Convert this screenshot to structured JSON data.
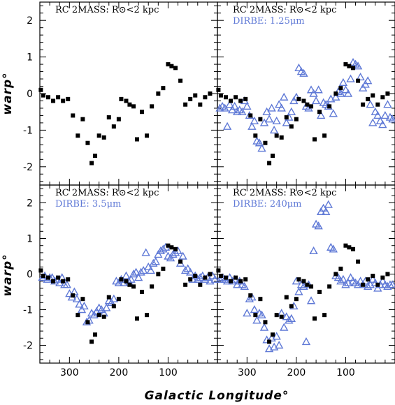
{
  "figure": {
    "xlabel": "Galactic Longitude°",
    "ylabel": "warp°"
  },
  "colors": {
    "rc": "#000000",
    "dirbe": "#5f79d6"
  },
  "chart_data": [
    {
      "type": "scatter",
      "panel": "top-left",
      "annotations": [
        {
          "text": "RC 2MASS: R⊙<2 kpc",
          "color": "#000000"
        }
      ],
      "xlim": [
        360,
        0
      ],
      "ylim": [
        -2.5,
        2.5
      ],
      "xticks": [
        300,
        200,
        100
      ],
      "yticks": [
        -2,
        -1,
        0,
        1,
        2
      ],
      "show_x_ticklabels": false,
      "show_y_ticklabels": true,
      "series": [
        {
          "role": "rc",
          "marker": "square",
          "x": [
            358,
            353,
            343,
            333,
            323,
            313,
            303,
            293,
            283,
            273,
            263,
            255,
            248,
            240,
            230,
            220,
            210,
            200,
            195,
            185,
            178,
            170,
            163,
            153,
            143,
            133,
            120,
            110,
            100,
            93,
            85,
            75,
            65,
            55,
            45,
            35,
            25,
            15
          ],
          "y": [
            0.1,
            -0.05,
            -0.1,
            -0.2,
            -0.1,
            -0.2,
            -0.15,
            -0.6,
            -1.15,
            -0.7,
            -1.35,
            -1.9,
            -1.7,
            -1.15,
            -1.2,
            -0.65,
            -0.9,
            -0.7,
            -0.15,
            -0.2,
            -0.3,
            -0.35,
            -1.25,
            -0.5,
            -1.15,
            -0.35,
            0.0,
            0.15,
            0.8,
            0.75,
            0.7,
            0.35,
            -0.3,
            -0.15,
            -0.05,
            -0.3,
            -0.1,
            0.0
          ]
        }
      ]
    },
    {
      "type": "scatter",
      "panel": "top-right",
      "annotations": [
        {
          "text": "RC 2MASS: R⊙<2 kpc",
          "color": "#000000"
        },
        {
          "text": "DIRBE: 1.25μm",
          "color": "#5f79d6"
        }
      ],
      "xlim": [
        360,
        0
      ],
      "ylim": [
        -2.5,
        2.5
      ],
      "xticks": [
        300,
        200,
        100
      ],
      "yticks": [
        -2,
        -1,
        0,
        1,
        2
      ],
      "show_x_ticklabels": false,
      "show_y_ticklabels": false,
      "series": [
        {
          "role": "rc",
          "marker": "square",
          "x": [
            358,
            353,
            343,
            333,
            323,
            313,
            303,
            293,
            283,
            273,
            263,
            255,
            248,
            240,
            230,
            220,
            210,
            200,
            195,
            185,
            178,
            170,
            163,
            153,
            143,
            133,
            120,
            110,
            100,
            93,
            85,
            75,
            65,
            55,
            45,
            35,
            25,
            15
          ],
          "y": [
            0.1,
            -0.05,
            -0.1,
            -0.2,
            -0.1,
            -0.2,
            -0.15,
            -0.6,
            -1.15,
            -0.7,
            -1.35,
            -1.9,
            -1.7,
            -1.15,
            -1.2,
            -0.65,
            -0.9,
            -0.7,
            -0.15,
            -0.2,
            -0.3,
            -0.35,
            -1.25,
            -0.5,
            -1.15,
            -0.35,
            0.0,
            0.15,
            0.8,
            0.75,
            0.7,
            0.35,
            -0.3,
            -0.15,
            -0.05,
            -0.3,
            -0.1,
            0.0
          ]
        },
        {
          "role": "dirbe",
          "marker": "triangle",
          "x": [
            355,
            350,
            345,
            340,
            335,
            330,
            325,
            320,
            315,
            310,
            305,
            300,
            295,
            290,
            285,
            280,
            275,
            270,
            265,
            260,
            255,
            250,
            245,
            240,
            235,
            230,
            225,
            220,
            215,
            210,
            205,
            200,
            195,
            190,
            185,
            180,
            175,
            170,
            165,
            160,
            155,
            150,
            145,
            140,
            135,
            130,
            125,
            120,
            115,
            110,
            105,
            100,
            95,
            90,
            85,
            80,
            75,
            70,
            65,
            60,
            55,
            50,
            45,
            40,
            35,
            30,
            25,
            20,
            15,
            10,
            5
          ],
          "y": [
            -0.4,
            -0.35,
            -0.4,
            -0.9,
            -0.3,
            -0.45,
            -0.35,
            -0.5,
            -0.45,
            -0.5,
            -0.2,
            -0.35,
            -0.6,
            -0.9,
            -0.75,
            -1.3,
            -1.35,
            -1.5,
            -0.8,
            -0.5,
            -0.7,
            -0.4,
            -1.0,
            -0.75,
            -0.3,
            -0.4,
            -0.1,
            -0.8,
            -0.65,
            -0.5,
            -0.2,
            -0.1,
            0.7,
            0.6,
            0.55,
            -0.35,
            -0.4,
            0.1,
            0.0,
            -0.2,
            0.1,
            -0.6,
            -0.25,
            -0.3,
            -0.35,
            -0.15,
            -0.55,
            -0.1,
            0.05,
            0.0,
            0.3,
            0.1,
            0.0,
            0.4,
            0.85,
            0.8,
            0.75,
            0.45,
            0.15,
            0.25,
            0.35,
            -0.3,
            -0.8,
            -0.5,
            -0.6,
            -0.75,
            -0.85,
            -0.6,
            -0.3,
            -0.65,
            -0.7
          ]
        }
      ]
    },
    {
      "type": "scatter",
      "panel": "bottom-left",
      "annotations": [
        {
          "text": "RC 2MASS: R⊙<2 kpc",
          "color": "#000000"
        },
        {
          "text": "DIRBE: 3.5μm",
          "color": "#5f79d6"
        }
      ],
      "xlim": [
        360,
        0
      ],
      "ylim": [
        -2.5,
        2.5
      ],
      "xticks": [
        300,
        200,
        100
      ],
      "yticks": [
        -2,
        -1,
        0,
        1,
        2
      ],
      "show_x_ticklabels": true,
      "show_y_ticklabels": true,
      "series": [
        {
          "role": "rc",
          "marker": "square",
          "x": [
            358,
            353,
            343,
            333,
            323,
            313,
            303,
            293,
            283,
            273,
            263,
            255,
            248,
            240,
            230,
            220,
            210,
            200,
            195,
            185,
            178,
            170,
            163,
            153,
            143,
            133,
            120,
            110,
            100,
            93,
            85,
            75,
            65,
            55,
            45,
            35,
            25,
            15
          ],
          "y": [
            0.1,
            -0.05,
            -0.1,
            -0.2,
            -0.1,
            -0.2,
            -0.15,
            -0.6,
            -1.15,
            -0.7,
            -1.35,
            -1.9,
            -1.7,
            -1.15,
            -1.2,
            -0.65,
            -0.9,
            -0.7,
            -0.15,
            -0.2,
            -0.3,
            -0.35,
            -1.25,
            -0.5,
            -1.15,
            -0.35,
            0.0,
            0.15,
            0.8,
            0.75,
            0.7,
            0.35,
            -0.3,
            -0.15,
            -0.05,
            -0.3,
            -0.1,
            0.0
          ]
        },
        {
          "role": "dirbe",
          "marker": "triangle",
          "x": [
            355,
            350,
            345,
            340,
            335,
            330,
            325,
            320,
            315,
            310,
            305,
            300,
            295,
            290,
            285,
            280,
            275,
            270,
            265,
            260,
            255,
            250,
            245,
            240,
            235,
            230,
            225,
            220,
            215,
            210,
            205,
            200,
            195,
            190,
            185,
            180,
            175,
            170,
            165,
            160,
            155,
            150,
            145,
            140,
            135,
            130,
            125,
            120,
            115,
            110,
            105,
            100,
            95,
            90,
            85,
            80,
            75,
            70,
            65,
            60,
            55,
            50,
            45,
            40,
            35,
            30,
            25,
            20,
            15,
            10,
            5
          ],
          "y": [
            -0.1,
            -0.05,
            -0.15,
            -0.1,
            -0.1,
            -0.2,
            -0.15,
            -0.25,
            -0.1,
            -0.3,
            -0.3,
            -0.55,
            -0.65,
            -0.5,
            -0.7,
            -0.85,
            -1.0,
            -0.9,
            -1.35,
            -1.3,
            -1.1,
            -1.15,
            -1.05,
            -0.95,
            -1.0,
            -1.1,
            -0.95,
            -0.75,
            -0.8,
            -0.7,
            -0.2,
            -0.25,
            -0.15,
            -0.25,
            -0.05,
            -0.2,
            -0.15,
            0.0,
            0.05,
            -0.1,
            0.05,
            0.1,
            0.6,
            0.2,
            0.1,
            0.3,
            0.35,
            0.55,
            0.65,
            0.7,
            0.75,
            0.5,
            0.45,
            0.55,
            0.6,
            0.65,
            0.3,
            0.5,
            0.1,
            0.15,
            0.05,
            -0.15,
            -0.05,
            -0.15,
            -0.1,
            -0.05,
            -0.15,
            -0.1,
            -0.2,
            -0.05,
            -0.15
          ]
        }
      ]
    },
    {
      "type": "scatter",
      "panel": "bottom-right",
      "annotations": [
        {
          "text": "RC 2MASS: R⊙<2 kpc",
          "color": "#000000"
        },
        {
          "text": "DIRBE: 240μm",
          "color": "#5f79d6"
        }
      ],
      "xlim": [
        360,
        0
      ],
      "ylim": [
        -2.5,
        2.5
      ],
      "xticks": [
        300,
        200,
        100
      ],
      "yticks": [
        -2,
        -1,
        0,
        1,
        2
      ],
      "show_x_ticklabels": true,
      "show_y_ticklabels": false,
      "series": [
        {
          "role": "rc",
          "marker": "square",
          "x": [
            358,
            353,
            343,
            333,
            323,
            313,
            303,
            293,
            283,
            273,
            263,
            255,
            248,
            240,
            230,
            220,
            210,
            200,
            195,
            185,
            178,
            170,
            163,
            153,
            143,
            133,
            120,
            110,
            100,
            93,
            85,
            75,
            65,
            55,
            45,
            35,
            25,
            15
          ],
          "y": [
            0.1,
            -0.05,
            -0.1,
            -0.2,
            -0.1,
            -0.2,
            -0.15,
            -0.6,
            -1.15,
            -0.7,
            -1.35,
            -1.9,
            -1.7,
            -1.15,
            -1.2,
            -0.65,
            -0.9,
            -0.7,
            -0.15,
            -0.2,
            -0.3,
            -0.35,
            -1.25,
            -0.5,
            -1.15,
            -0.35,
            0.0,
            0.15,
            0.8,
            0.75,
            0.7,
            0.35,
            -0.3,
            -0.15,
            -0.05,
            -0.3,
            -0.1,
            0.0
          ]
        },
        {
          "role": "dirbe",
          "marker": "triangle",
          "x": [
            355,
            350,
            345,
            340,
            335,
            330,
            325,
            320,
            315,
            310,
            305,
            300,
            295,
            290,
            285,
            280,
            275,
            270,
            265,
            260,
            255,
            250,
            245,
            240,
            235,
            230,
            225,
            220,
            215,
            210,
            205,
            200,
            195,
            190,
            185,
            180,
            175,
            170,
            165,
            160,
            155,
            150,
            145,
            140,
            135,
            130,
            125,
            120,
            115,
            110,
            105,
            100,
            95,
            90,
            85,
            80,
            75,
            70,
            65,
            60,
            55,
            50,
            45,
            40,
            35,
            30,
            25,
            20,
            15,
            10,
            5
          ],
          "y": [
            -0.15,
            -0.1,
            -0.15,
            -0.2,
            -0.1,
            -0.2,
            -0.15,
            -0.3,
            -0.2,
            -0.3,
            -0.35,
            -1.1,
            -0.7,
            -0.65,
            -1.0,
            -1.3,
            -1.1,
            -1.15,
            -1.5,
            -1.85,
            -2.1,
            -1.8,
            -2.05,
            -1.75,
            -2.0,
            -1.1,
            -1.5,
            -1.2,
            -1.3,
            -1.25,
            -0.9,
            -0.2,
            -0.5,
            -0.3,
            -0.35,
            -1.9,
            -0.3,
            -0.75,
            0.65,
            1.4,
            1.35,
            1.75,
            1.85,
            1.75,
            1.95,
            0.75,
            0.7,
            -0.05,
            -0.1,
            -0.2,
            -0.15,
            -0.3,
            -0.25,
            -0.1,
            -0.2,
            -0.25,
            -0.3,
            -0.2,
            -0.3,
            -0.2,
            -0.35,
            -0.3,
            -0.15,
            -0.25,
            -0.4,
            -0.3,
            -0.2,
            -0.3,
            -0.35,
            -0.3,
            -0.3
          ]
        }
      ]
    }
  ]
}
